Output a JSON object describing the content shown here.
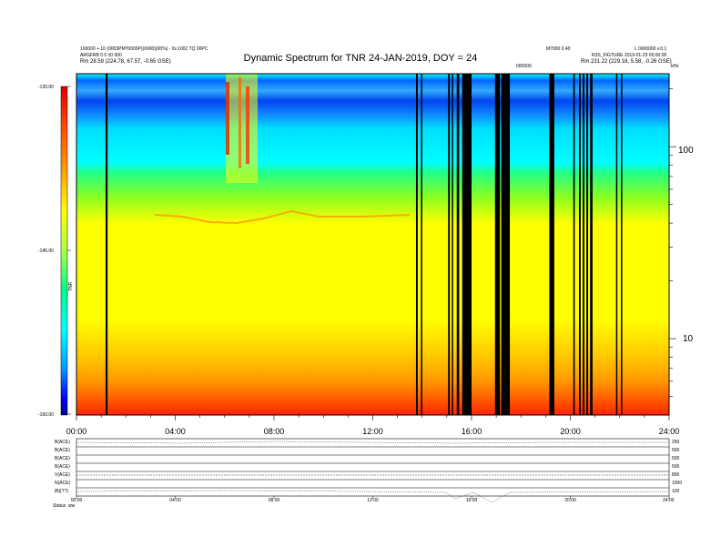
{
  "header": {
    "title": "Dynamic Spectrum for TNR 24-JAN-2019, DOY = 24",
    "left_line1": "100000 + 10 (0003PM?0000P)(0000)(00%) - 0v.1002 TQ 00PC",
    "left_line2": "ARGFRB 0 0 ±0 000",
    "left_line3": "Rm   28.59 (224.78, 67.57, -0.65 GSE)",
    "right_top1": "M?000 0.40",
    "right_top2": "L 0000000 v.0.1",
    "right_line2": "R3S_FIGTURE  2019-01-23 00:00:00",
    "right_line3": "Rm   231.22 (229.18, 5.58, -0.26 GSE)",
    "mid_label": "000000"
  },
  "colorbar": {
    "labels": [
      "-130.00",
      "-145.00",
      "-160.00"
    ],
    "values": [
      -130,
      -145,
      -160
    ],
    "unit": "TNR",
    "colors": [
      "#dd0000",
      "#ff5500",
      "#ffaa00",
      "#ffff00",
      "#aaff44",
      "#00ff66",
      "#00ffff",
      "#0099ff",
      "#0000ff",
      "#000088"
    ]
  },
  "chart_data": {
    "type": "heatmap",
    "title": "Dynamic Spectrum for TNR 24-JAN-2019, DOY = 24",
    "x_ticks": [
      "00:00",
      "04:00",
      "08:00",
      "12:00",
      "16:00",
      "20:00",
      "24:00"
    ],
    "x_range_hours": [
      0,
      24
    ],
    "y_scale": "log",
    "y_range": [
      4,
      240
    ],
    "y_right_unit": "kHz",
    "y_right_ticks": [
      {
        "label": "100",
        "value": 100
      },
      {
        "label": "10",
        "value": 10
      }
    ],
    "color_range": [
      -160,
      -130
    ],
    "gap_intervals_hours": [
      [
        1.18,
        1.26
      ],
      [
        13.75,
        13.82
      ],
      [
        13.95,
        13.99
      ],
      [
        15.05,
        15.12
      ],
      [
        15.2,
        15.24
      ],
      [
        15.4,
        15.5
      ],
      [
        15.62,
        16.0
      ],
      [
        16.95,
        17.15
      ],
      [
        17.2,
        17.55
      ],
      [
        19.15,
        19.35
      ],
      [
        20.12,
        20.18
      ],
      [
        20.35,
        20.42
      ],
      [
        20.5,
        20.57
      ],
      [
        20.65,
        20.72
      ],
      [
        20.8,
        20.9
      ],
      [
        21.85,
        21.9
      ],
      [
        22.05,
        22.1
      ]
    ]
  },
  "panel": {
    "rows": [
      {
        "label": "B(ACE)",
        "right": "250"
      },
      {
        "label": "B(ACE)",
        "right": "500"
      },
      {
        "label": "B(ACE)",
        "right": "500"
      },
      {
        "label": "B(ACE)",
        "right": "500"
      },
      {
        "label": "V(ACE)",
        "right": "800"
      },
      {
        "label": "N(ACE)",
        "right": "1000"
      },
      {
        "label": "|B|(T?)",
        "right": "100"
      }
    ],
    "x_ticks": [
      "00:00",
      "04:00",
      "08:00",
      "12:00",
      "16:00",
      "20:00",
      "24:00"
    ],
    "footer_left": "Status",
    "footer_val": "ww"
  }
}
